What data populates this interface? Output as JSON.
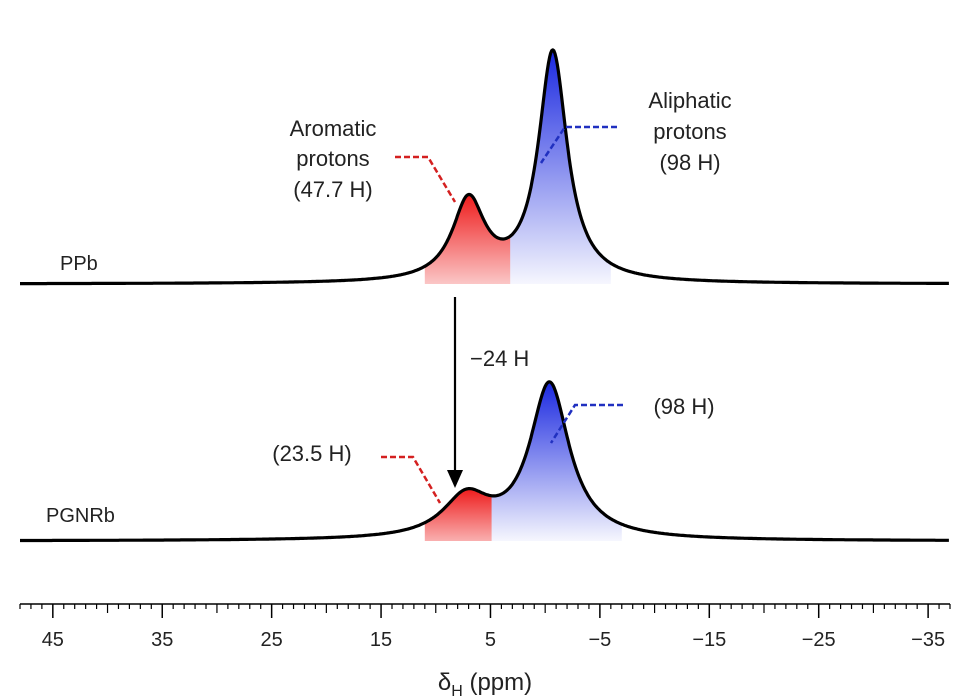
{
  "chart_data": {
    "type": "line",
    "xlabel_main": "δ",
    "xlabel_sub": "H",
    "xlabel_rest": " (ppm)",
    "xlim": [
      48,
      -37
    ],
    "x_reversed": true,
    "major_ticks": [
      45,
      35,
      25,
      15,
      5,
      -5,
      -15,
      -25,
      -35
    ],
    "tick_labels": [
      "45",
      "35",
      "25",
      "15",
      "5",
      "−5",
      "−15",
      "−25",
      "−35"
    ],
    "minor_tick_step": 1,
    "series": [
      {
        "name": "PPb",
        "color": "#000000",
        "baseline": 0,
        "peaks": [
          {
            "label": "aromatic",
            "center": 7.0,
            "height": 0.32,
            "width": 1.8,
            "fill": "#ee1c1c",
            "fill_from": 11,
            "fill_to": 3.2
          },
          {
            "label": "aliphatic",
            "center": -0.7,
            "height": 0.92,
            "width": 1.6,
            "fill": "#2030e0",
            "fill_from": 3.2,
            "fill_to": -6
          }
        ]
      },
      {
        "name": "PGNRb",
        "color": "#000000",
        "baseline": 0,
        "peaks": [
          {
            "label": "aromatic",
            "center": 7.2,
            "height": 0.16,
            "width": 2.6,
            "fill": "#ee1c1c",
            "fill_from": 11,
            "fill_to": 4.9
          },
          {
            "label": "aliphatic",
            "center": -0.4,
            "height": 0.62,
            "width": 2.2,
            "fill": "#2030e0",
            "fill_from": 4.9,
            "fill_to": -7
          }
        ]
      }
    ],
    "annotations": {
      "aromatic_top": [
        "Aromatic",
        "protons",
        "(47.7 H)"
      ],
      "aliphatic_top": [
        "Aliphatic",
        "protons",
        "(98 H)"
      ],
      "aromatic_bottom": "(23.5 H)",
      "aliphatic_bottom": "(98 H)",
      "arrow_label": "−24 H"
    },
    "annotation_colors": {
      "aromatic": "#d42020",
      "aliphatic": "#2030c0"
    }
  }
}
